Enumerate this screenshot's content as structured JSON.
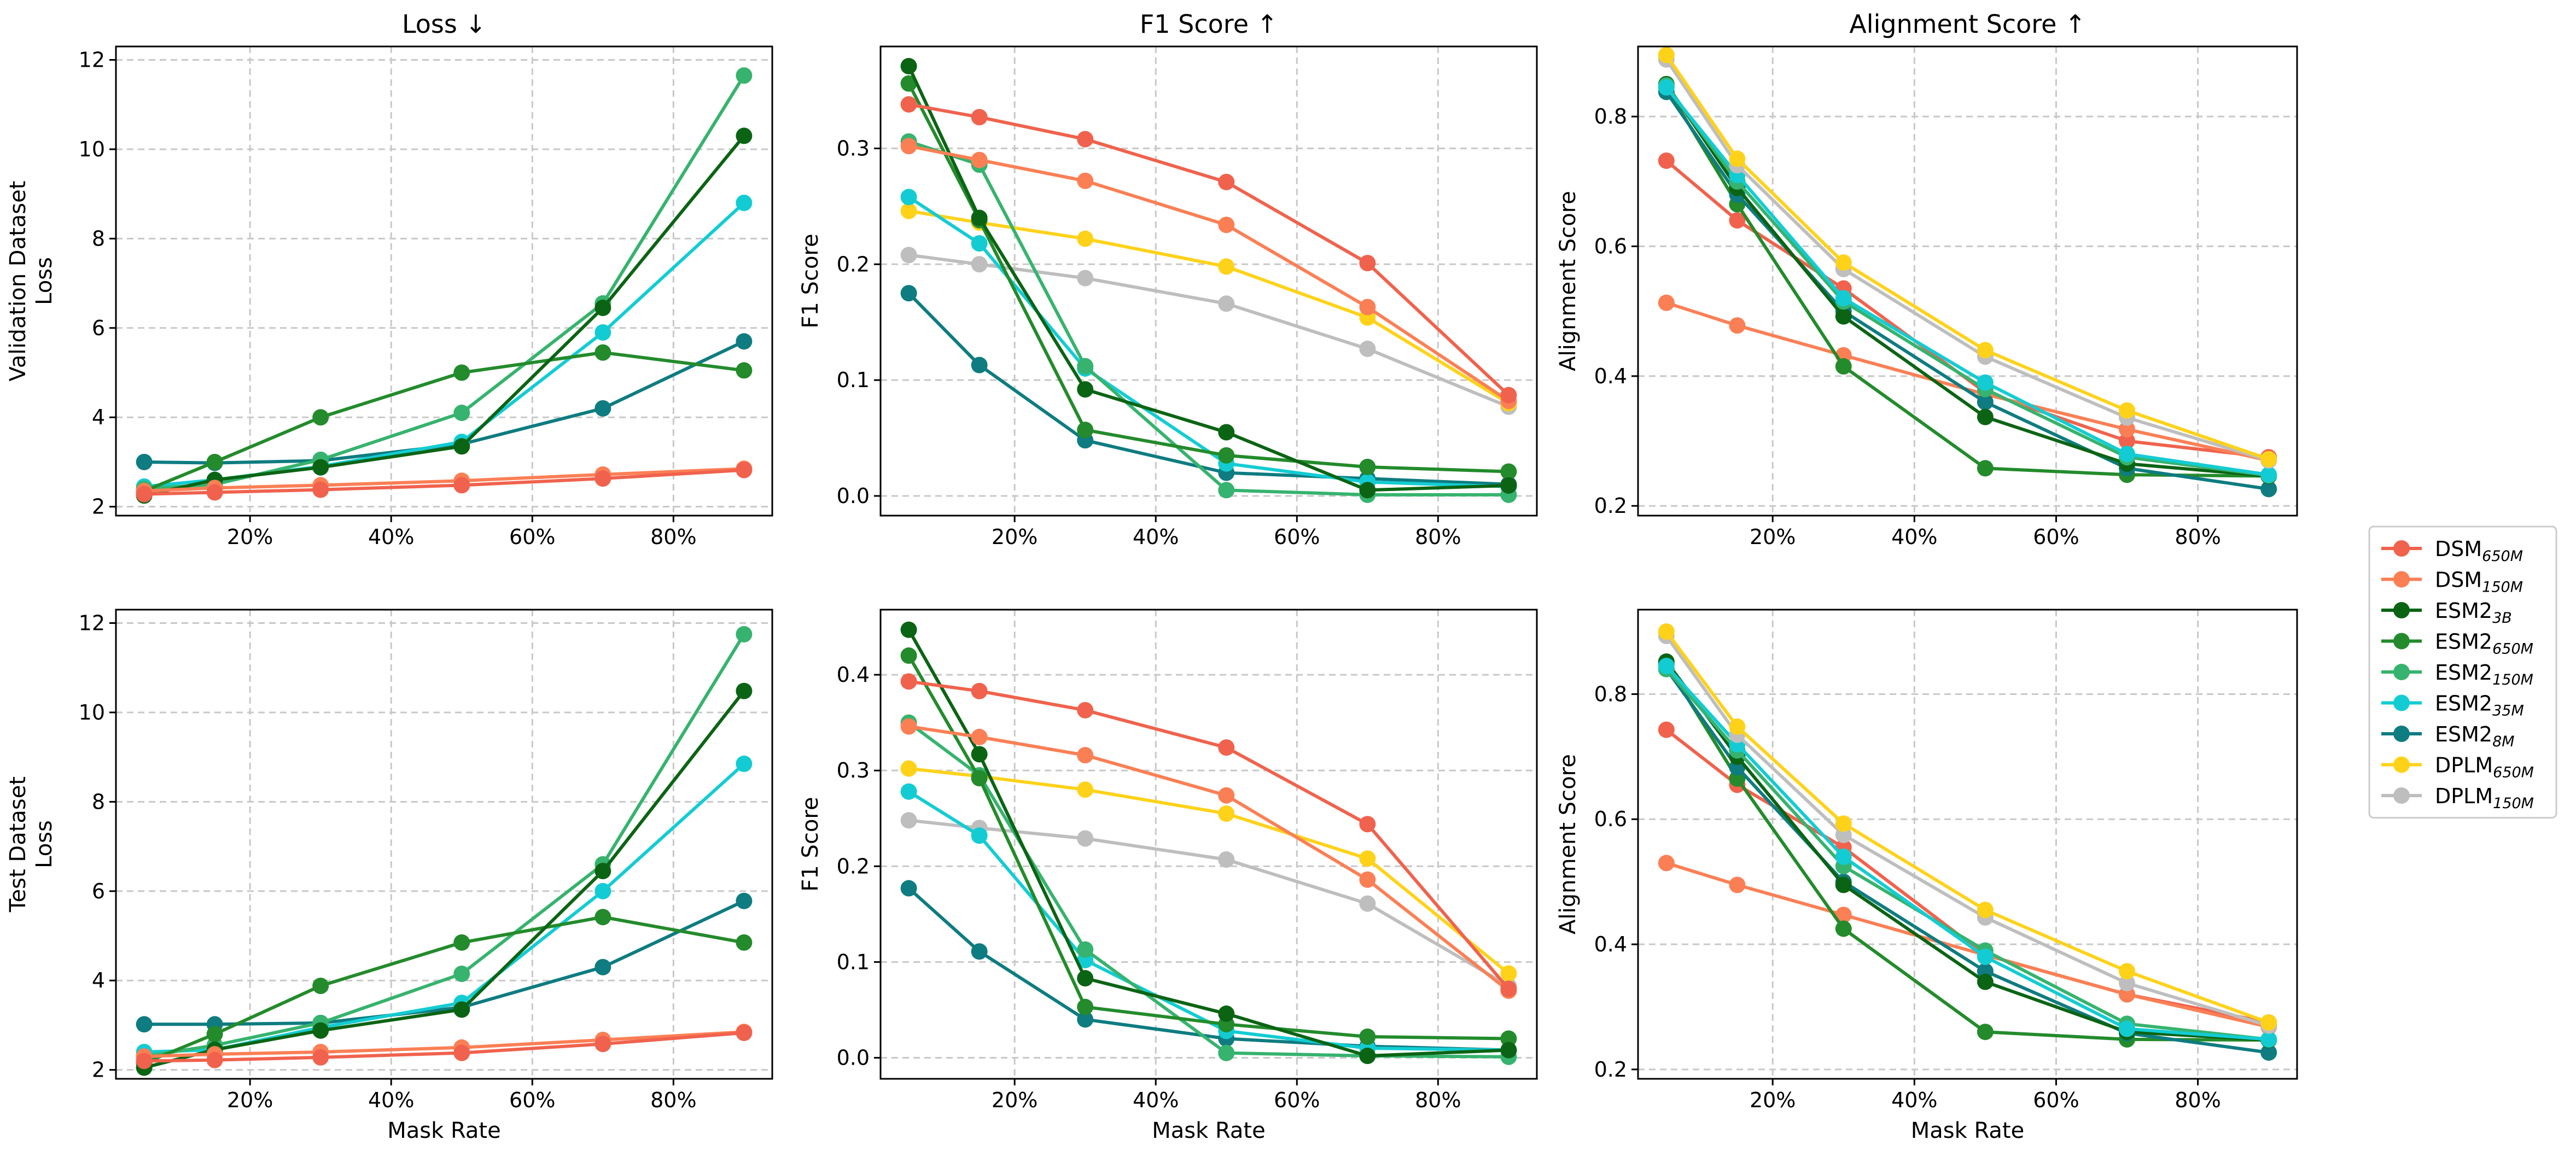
{
  "chart_data": {
    "type": "line",
    "xlabel": "Mask Rate",
    "x": [
      0.05,
      0.15,
      0.3,
      0.5,
      0.7,
      0.9
    ],
    "xticks": [
      0.2,
      0.4,
      0.6,
      0.8
    ],
    "xtick_labels": [
      "20%",
      "40%",
      "60%",
      "80%"
    ],
    "xlim": [
      0.01,
      0.94
    ],
    "column_titles": [
      "Loss ↓",
      "F1 Score ↑",
      "Alignment Score ↑"
    ],
    "legend": {
      "placement": "right",
      "entries": [
        {
          "key": "DSM650M",
          "base": "DSM",
          "sub": "650M",
          "color": "#F0624D"
        },
        {
          "key": "DSM150M",
          "base": "DSM",
          "sub": "150M",
          "color": "#FB7F55"
        },
        {
          "key": "ESM2_3B",
          "base": "ESM2",
          "sub": "3B",
          "color": "#0B6414"
        },
        {
          "key": "ESM2_650M",
          "base": "ESM2",
          "sub": "650M",
          "color": "#238B2B"
        },
        {
          "key": "ESM2_150M",
          "base": "ESM2",
          "sub": "150M",
          "color": "#36B36E"
        },
        {
          "key": "ESM2_35M",
          "base": "ESM2",
          "sub": "35M",
          "color": "#13CCD3"
        },
        {
          "key": "ESM2_8M",
          "base": "ESM2",
          "sub": "8M",
          "color": "#0E7C80"
        },
        {
          "key": "DPLM650M",
          "base": "DPLM",
          "sub": "650M",
          "color": "#FFD21A"
        },
        {
          "key": "DPLM150M",
          "base": "DPLM",
          "sub": "150M",
          "color": "#BEBEBE"
        }
      ]
    },
    "panels": [
      {
        "id": "val-loss",
        "row": 0,
        "col": 0,
        "ylabel_lines": [
          "Validation Dataset",
          "Loss"
        ],
        "ylim": [
          1.8,
          12.3
        ],
        "yticks": [
          2,
          4,
          6,
          8,
          10,
          12
        ],
        "ytick_labels": [
          "2",
          "4",
          "6",
          "8",
          "10",
          "12"
        ],
        "series": [
          {
            "key": "ESM2_8M",
            "values": [
              3.0,
              2.98,
              3.03,
              3.4,
              4.2,
              5.7
            ]
          },
          {
            "key": "ESM2_35M",
            "values": [
              2.45,
              2.6,
              2.9,
              3.45,
              5.9,
              8.8
            ]
          },
          {
            "key": "ESM2_150M",
            "values": [
              2.4,
              2.5,
              3.05,
              4.1,
              6.55,
              11.65
            ]
          },
          {
            "key": "ESM2_650M",
            "values": [
              2.35,
              3.0,
              4.0,
              5.0,
              5.45,
              5.05
            ]
          },
          {
            "key": "ESM2_3B",
            "values": [
              2.25,
              2.6,
              2.88,
              3.35,
              6.45,
              10.3
            ]
          },
          {
            "key": "DSM150M",
            "values": [
              2.35,
              2.42,
              2.48,
              2.58,
              2.72,
              2.85
            ]
          },
          {
            "key": "DSM650M",
            "values": [
              2.28,
              2.32,
              2.38,
              2.48,
              2.63,
              2.82
            ]
          }
        ]
      },
      {
        "id": "val-f1",
        "row": 0,
        "col": 1,
        "ylabel_lines": [
          "F1 Score"
        ],
        "ylim": [
          -0.017,
          0.388
        ],
        "yticks": [
          0.0,
          0.1,
          0.2,
          0.3
        ],
        "ytick_labels": [
          "0.0",
          "0.1",
          "0.2",
          "0.3"
        ],
        "series": [
          {
            "key": "DPLM150M",
            "values": [
              0.208,
              0.2,
              0.188,
              0.166,
              0.127,
              0.077
            ]
          },
          {
            "key": "DPLM650M",
            "values": [
              0.246,
              0.236,
              0.222,
              0.198,
              0.154,
              0.08
            ]
          },
          {
            "key": "ESM2_8M",
            "values": [
              0.175,
              0.113,
              0.048,
              0.02,
              0.015,
              0.01
            ]
          },
          {
            "key": "ESM2_35M",
            "values": [
              0.258,
              0.218,
              0.11,
              0.028,
              0.012,
              0.008
            ]
          },
          {
            "key": "ESM2_150M",
            "values": [
              0.306,
              0.286,
              0.112,
              0.005,
              0.001,
              0.001
            ]
          },
          {
            "key": "ESM2_650M",
            "values": [
              0.356,
              0.238,
              0.057,
              0.035,
              0.025,
              0.021
            ]
          },
          {
            "key": "ESM2_3B",
            "values": [
              0.371,
              0.24,
              0.092,
              0.055,
              0.005,
              0.009
            ]
          },
          {
            "key": "DSM150M",
            "values": [
              0.302,
              0.29,
              0.272,
              0.234,
              0.163,
              0.082
            ]
          },
          {
            "key": "DSM650M",
            "values": [
              0.338,
              0.327,
              0.308,
              0.271,
              0.201,
              0.087
            ]
          }
        ]
      },
      {
        "id": "val-align",
        "row": 0,
        "col": 2,
        "ylabel_lines": [
          "Alignment Score"
        ],
        "ylim": [
          0.185,
          0.908
        ],
        "yticks": [
          0.2,
          0.4,
          0.6,
          0.8
        ],
        "ytick_labels": [
          "0.2",
          "0.4",
          "0.6",
          "0.8"
        ],
        "series": [
          {
            "key": "DSM650M",
            "values": [
              0.732,
              0.64,
              0.535,
              0.375,
              0.3,
              0.275
            ]
          },
          {
            "key": "DSM150M",
            "values": [
              0.513,
              0.478,
              0.432,
              0.372,
              0.318,
              0.27
            ]
          },
          {
            "key": "ESM2_650M",
            "values": [
              0.845,
              0.665,
              0.415,
              0.258,
              0.248,
              0.246
            ]
          },
          {
            "key": "ESM2_8M",
            "values": [
              0.838,
              0.68,
              0.5,
              0.36,
              0.258,
              0.226
            ]
          },
          {
            "key": "ESM2_3B",
            "values": [
              0.85,
              0.69,
              0.492,
              0.337,
              0.265,
              0.246
            ]
          },
          {
            "key": "ESM2_150M",
            "values": [
              0.848,
              0.7,
              0.515,
              0.38,
              0.275,
              0.247
            ]
          },
          {
            "key": "ESM2_35M",
            "values": [
              0.845,
              0.71,
              0.52,
              0.39,
              0.28,
              0.248
            ]
          },
          {
            "key": "DPLM150M",
            "values": [
              0.888,
              0.725,
              0.565,
              0.43,
              0.336,
              0.27
            ]
          },
          {
            "key": "DPLM650M",
            "values": [
              0.895,
              0.735,
              0.575,
              0.44,
              0.347,
              0.272
            ]
          }
        ]
      },
      {
        "id": "test-loss",
        "row": 1,
        "col": 0,
        "ylabel_lines": [
          "Test Dataset",
          "Loss"
        ],
        "ylim": [
          1.8,
          12.3
        ],
        "yticks": [
          2,
          4,
          6,
          8,
          10,
          12
        ],
        "ytick_labels": [
          "2",
          "4",
          "6",
          "8",
          "10",
          "12"
        ],
        "series": [
          {
            "key": "ESM2_8M",
            "values": [
              3.02,
              3.02,
              3.05,
              3.4,
              4.3,
              5.78
            ]
          },
          {
            "key": "ESM2_35M",
            "values": [
              2.4,
              2.45,
              2.95,
              3.5,
              6.0,
              8.85
            ]
          },
          {
            "key": "ESM2_150M",
            "values": [
              2.3,
              2.55,
              3.05,
              4.15,
              6.6,
              11.75
            ]
          },
          {
            "key": "ESM2_650M",
            "values": [
              2.15,
              2.8,
              3.88,
              4.85,
              5.42,
              4.85
            ]
          },
          {
            "key": "ESM2_3B",
            "values": [
              2.05,
              2.45,
              2.88,
              3.35,
              6.45,
              10.48
            ]
          },
          {
            "key": "DSM150M",
            "values": [
              2.3,
              2.35,
              2.4,
              2.5,
              2.67,
              2.85
            ]
          },
          {
            "key": "DSM650M",
            "values": [
              2.2,
              2.22,
              2.28,
              2.38,
              2.58,
              2.83
            ]
          }
        ]
      },
      {
        "id": "test-f1",
        "row": 1,
        "col": 1,
        "ylabel_lines": [
          "F1 Score"
        ],
        "ylim": [
          -0.022,
          0.468
        ],
        "yticks": [
          0.0,
          0.1,
          0.2,
          0.3,
          0.4
        ],
        "ytick_labels": [
          "0.0",
          "0.1",
          "0.2",
          "0.3",
          "0.4"
        ],
        "series": [
          {
            "key": "DPLM150M",
            "values": [
              0.248,
              0.24,
              0.229,
              0.207,
              0.161,
              0.075
            ]
          },
          {
            "key": "DPLM650M",
            "values": [
              0.302,
              0.294,
              0.28,
              0.255,
              0.208,
              0.088
            ]
          },
          {
            "key": "ESM2_8M",
            "values": [
              0.177,
              0.111,
              0.04,
              0.02,
              0.012,
              0.008
            ]
          },
          {
            "key": "ESM2_35M",
            "values": [
              0.278,
              0.232,
              0.102,
              0.028,
              0.01,
              0.008
            ]
          },
          {
            "key": "ESM2_150M",
            "values": [
              0.35,
              0.295,
              0.113,
              0.005,
              0.002,
              0.001
            ]
          },
          {
            "key": "ESM2_650M",
            "values": [
              0.42,
              0.292,
              0.053,
              0.035,
              0.022,
              0.02
            ]
          },
          {
            "key": "ESM2_3B",
            "values": [
              0.447,
              0.317,
              0.083,
              0.046,
              0.002,
              0.008
            ]
          },
          {
            "key": "DSM150M",
            "values": [
              0.346,
              0.335,
              0.316,
              0.274,
              0.186,
              0.07
            ]
          },
          {
            "key": "DSM650M",
            "values": [
              0.393,
              0.383,
              0.363,
              0.324,
              0.244,
              0.072
            ]
          }
        ]
      },
      {
        "id": "test-align",
        "row": 1,
        "col": 2,
        "ylabel_lines": [
          "Alignment Score"
        ],
        "ylim": [
          0.185,
          0.935
        ],
        "yticks": [
          0.2,
          0.4,
          0.6,
          0.8
        ],
        "ytick_labels": [
          "0.2",
          "0.4",
          "0.6",
          "0.8"
        ],
        "series": [
          {
            "key": "DSM650M",
            "values": [
              0.743,
              0.655,
              0.555,
              0.383,
              0.32,
              0.275
            ]
          },
          {
            "key": "DSM150M",
            "values": [
              0.53,
              0.495,
              0.447,
              0.383,
              0.32,
              0.268
            ]
          },
          {
            "key": "ESM2_650M",
            "values": [
              0.848,
              0.665,
              0.425,
              0.26,
              0.248,
              0.247
            ]
          },
          {
            "key": "ESM2_8M",
            "values": [
              0.84,
              0.683,
              0.5,
              0.357,
              0.258,
              0.227
            ]
          },
          {
            "key": "ESM2_3B",
            "values": [
              0.852,
              0.7,
              0.495,
              0.34,
              0.26,
              0.247
            ]
          },
          {
            "key": "ESM2_150M",
            "values": [
              0.84,
              0.71,
              0.525,
              0.39,
              0.273,
              0.248
            ]
          },
          {
            "key": "ESM2_35M",
            "values": [
              0.845,
              0.72,
              0.54,
              0.38,
              0.265,
              0.248
            ]
          },
          {
            "key": "DPLM150M",
            "values": [
              0.893,
              0.735,
              0.575,
              0.443,
              0.338,
              0.27
            ]
          },
          {
            "key": "DPLM650M",
            "values": [
              0.9,
              0.748,
              0.593,
              0.455,
              0.357,
              0.275
            ]
          }
        ]
      }
    ]
  }
}
